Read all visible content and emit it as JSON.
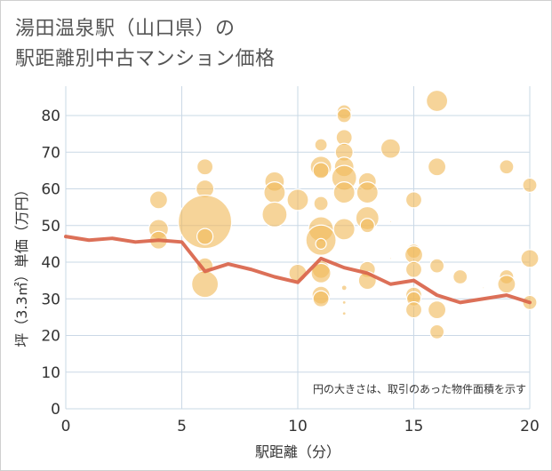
{
  "title": {
    "line1": "湯田温泉駅（山口県）の",
    "line2": "駅距離別中古マンション価格"
  },
  "chart_data": {
    "type": "scatter",
    "xlabel": "駅距離（分）",
    "ylabel": "坪（3.3㎡）単価（万円）",
    "note": "円の大きさは、取引のあった物件面積を示す",
    "xlim": [
      0,
      20
    ],
    "ylim": [
      0,
      88
    ],
    "xticks": [
      "0",
      "5",
      "10",
      "15",
      "20"
    ],
    "yticks": [
      "0",
      "10",
      "20",
      "30",
      "40",
      "50",
      "60",
      "70",
      "80"
    ],
    "grid": true,
    "colors": {
      "bubble": "#f1b95a",
      "line": "#d9644a",
      "grid": "#cad8e6"
    },
    "bubbles": [
      {
        "x": 4,
        "y": 57,
        "r": 10
      },
      {
        "x": 4,
        "y": 49,
        "r": 11
      },
      {
        "x": 4,
        "y": 46,
        "r": 10
      },
      {
        "x": 6,
        "y": 66,
        "r": 9
      },
      {
        "x": 6,
        "y": 60,
        "r": 10
      },
      {
        "x": 6,
        "y": 51,
        "r": 30
      },
      {
        "x": 6,
        "y": 47,
        "r": 9
      },
      {
        "x": 6,
        "y": 39,
        "r": 9
      },
      {
        "x": 6,
        "y": 34,
        "r": 15
      },
      {
        "x": 9,
        "y": 62,
        "r": 11
      },
      {
        "x": 9,
        "y": 59,
        "r": 12
      },
      {
        "x": 9,
        "y": 53,
        "r": 14
      },
      {
        "x": 10,
        "y": 57,
        "r": 12
      },
      {
        "x": 10,
        "y": 37,
        "r": 10
      },
      {
        "x": 11,
        "y": 72,
        "r": 7
      },
      {
        "x": 11,
        "y": 66,
        "r": 12
      },
      {
        "x": 11,
        "y": 65,
        "r": 9
      },
      {
        "x": 11,
        "y": 56,
        "r": 8
      },
      {
        "x": 11,
        "y": 49,
        "r": 14
      },
      {
        "x": 11,
        "y": 46,
        "r": 17
      },
      {
        "x": 11,
        "y": 45,
        "r": 6
      },
      {
        "x": 11,
        "y": 38,
        "r": 10
      },
      {
        "x": 11,
        "y": 37,
        "r": 11
      },
      {
        "x": 11,
        "y": 31,
        "r": 10
      },
      {
        "x": 11,
        "y": 30,
        "r": 9
      },
      {
        "x": 12,
        "y": 81,
        "r": 8
      },
      {
        "x": 12,
        "y": 80,
        "r": 8
      },
      {
        "x": 12,
        "y": 74,
        "r": 9
      },
      {
        "x": 12,
        "y": 70,
        "r": 10
      },
      {
        "x": 12,
        "y": 66,
        "r": 11
      },
      {
        "x": 12,
        "y": 63,
        "r": 14
      },
      {
        "x": 12,
        "y": 59,
        "r": 12
      },
      {
        "x": 12,
        "y": 49,
        "r": 12
      },
      {
        "x": 12,
        "y": 33,
        "r": 3
      },
      {
        "x": 12,
        "y": 29,
        "r": 2
      },
      {
        "x": 12,
        "y": 26,
        "r": 2
      },
      {
        "x": 13,
        "y": 62,
        "r": 10
      },
      {
        "x": 13,
        "y": 59,
        "r": 12
      },
      {
        "x": 13,
        "y": 52,
        "r": 13
      },
      {
        "x": 13,
        "y": 50,
        "r": 8
      },
      {
        "x": 13,
        "y": 38,
        "r": 9
      },
      {
        "x": 13,
        "y": 35,
        "r": 10
      },
      {
        "x": 14,
        "y": 71,
        "r": 11
      },
      {
        "x": 14,
        "y": 51,
        "r": 1
      },
      {
        "x": 14,
        "y": 41,
        "r": 1
      },
      {
        "x": 15,
        "y": 57,
        "r": 9
      },
      {
        "x": 15,
        "y": 43,
        "r": 8
      },
      {
        "x": 15,
        "y": 42,
        "r": 10
      },
      {
        "x": 15,
        "y": 38,
        "r": 9
      },
      {
        "x": 15,
        "y": 31,
        "r": 9
      },
      {
        "x": 15,
        "y": 30,
        "r": 8
      },
      {
        "x": 15,
        "y": 27,
        "r": 9
      },
      {
        "x": 16,
        "y": 84,
        "r": 12
      },
      {
        "x": 16,
        "y": 66,
        "r": 10
      },
      {
        "x": 16,
        "y": 39,
        "r": 8
      },
      {
        "x": 16,
        "y": 27,
        "r": 10
      },
      {
        "x": 16,
        "y": 21,
        "r": 8
      },
      {
        "x": 17,
        "y": 36,
        "r": 8
      },
      {
        "x": 18,
        "y": 33,
        "r": 1
      },
      {
        "x": 19,
        "y": 66,
        "r": 8
      },
      {
        "x": 19,
        "y": 36,
        "r": 8
      },
      {
        "x": 19,
        "y": 34,
        "r": 10
      },
      {
        "x": 20,
        "y": 61,
        "r": 8
      },
      {
        "x": 20,
        "y": 41,
        "r": 10
      },
      {
        "x": 20,
        "y": 29,
        "r": 8
      }
    ],
    "line": {
      "x": [
        0,
        1,
        2,
        3,
        4,
        5,
        6,
        7,
        8,
        9,
        10,
        11,
        12,
        13,
        14,
        15,
        16,
        17,
        18,
        19,
        20
      ],
      "y": [
        47,
        46,
        46.5,
        45.5,
        46,
        45.5,
        37.5,
        39.5,
        38,
        36,
        34.5,
        41,
        38.5,
        37,
        34,
        35,
        31,
        29,
        30,
        31,
        29
      ]
    }
  }
}
